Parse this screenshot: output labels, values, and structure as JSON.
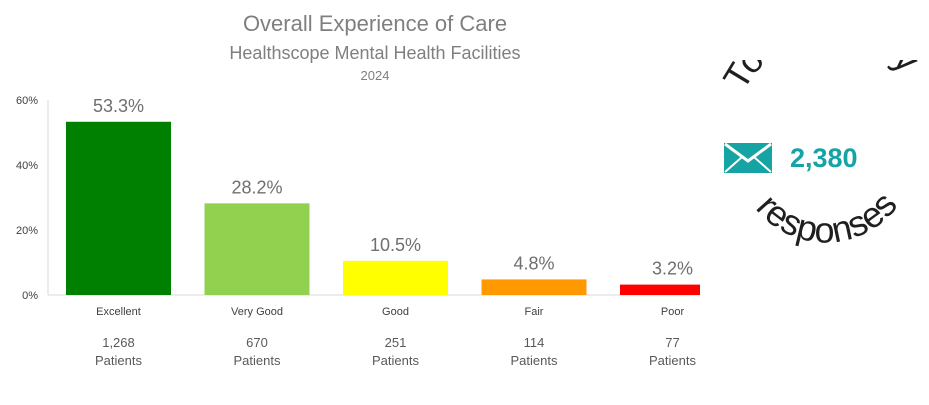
{
  "chart_data": {
    "type": "bar",
    "title": "Overall Experience of Care",
    "subtitle": "Healthscope Mental Health Facilities",
    "year": "2024",
    "categories": [
      "Excellent",
      "Very Good",
      "Good",
      "Fair",
      "Poor"
    ],
    "values": [
      53.3,
      28.2,
      10.5,
      4.8,
      3.2
    ],
    "value_labels": [
      "53.3%",
      "28.2%",
      "10.5%",
      "4.8%",
      "3.2%"
    ],
    "counts": [
      "1,268",
      "670",
      "251",
      "114",
      "77"
    ],
    "count_unit": "Patients",
    "colors": [
      "#008000",
      "#92d050",
      "#ffff00",
      "#ff9900",
      "#ff0000"
    ],
    "ylim": [
      0,
      60
    ],
    "yticks": [
      0,
      20,
      40,
      60
    ],
    "ytick_labels": [
      "0%",
      "20%",
      "40%",
      "60%"
    ],
    "grid": false,
    "legend": "none"
  },
  "survey": {
    "top_text": "Total survey",
    "bottom_text": "responses",
    "total": "2,380",
    "icon": "envelope-icon",
    "accent": "#16a3a3"
  }
}
